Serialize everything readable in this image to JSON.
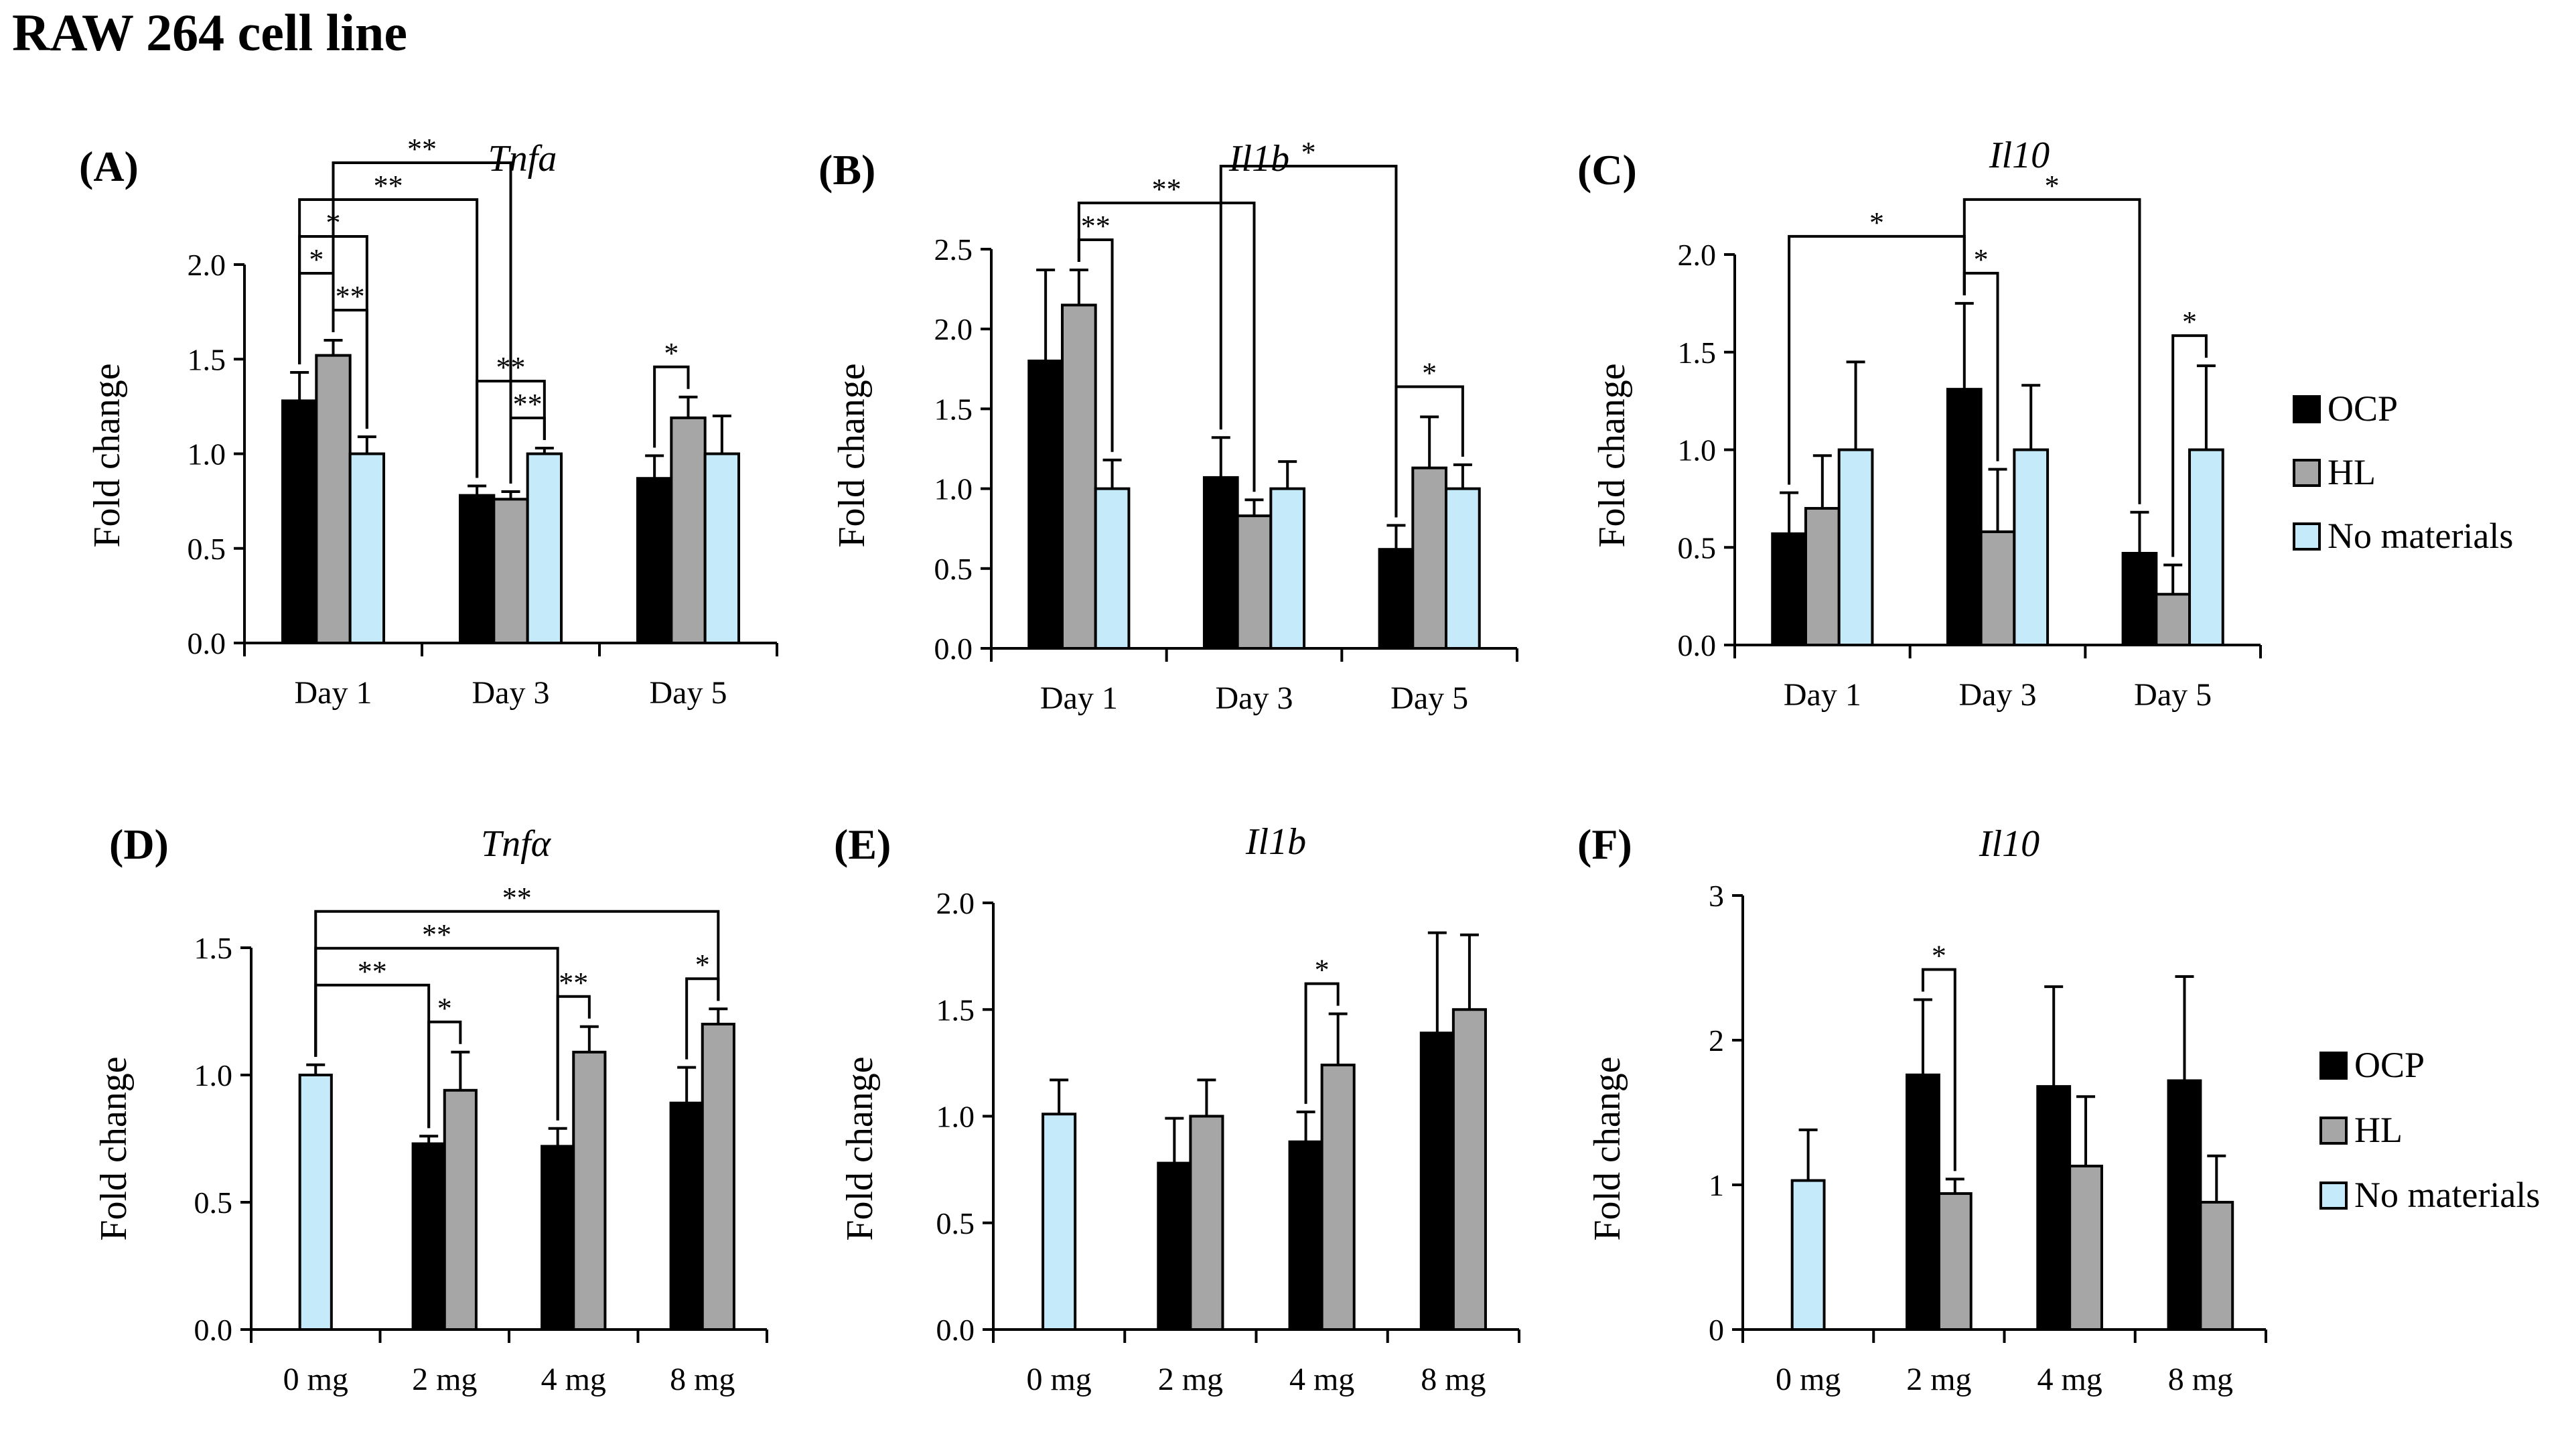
{
  "page_title": "RAW 264 cell line",
  "colors": {
    "OCP": "#000000",
    "HL": "#a6a6a6",
    "No materials": "#c5ebfb",
    "stroke": "#000000"
  },
  "legends": [
    {
      "entries": [
        "OCP",
        "HL",
        "No materials"
      ]
    },
    {
      "entries": [
        "OCP",
        "HL",
        "No materials"
      ]
    }
  ],
  "chart_data": [
    {
      "id": "A",
      "panel_label": "(A)",
      "type": "bar",
      "title": "Tnfa",
      "xlabel": "",
      "ylabel": "Fold change",
      "ylim": [
        0,
        2.0
      ],
      "yticks": [
        "0.0",
        "0.5",
        "1.0",
        "1.5",
        "2.0"
      ],
      "categories": [
        "Day 1",
        "Day 3",
        "Day 5"
      ],
      "series": [
        {
          "name": "OCP",
          "values": [
            1.28,
            0.78,
            0.87
          ],
          "errors": [
            0.15,
            0.05,
            0.12
          ]
        },
        {
          "name": "HL",
          "values": [
            1.52,
            0.76,
            1.19
          ],
          "errors": [
            0.08,
            0.04,
            0.11
          ]
        },
        {
          "name": "No materials",
          "values": [
            1.0,
            1.0,
            1.0
          ],
          "errors": [
            0.09,
            0.03,
            0.2
          ]
        }
      ],
      "annotations": [
        {
          "from": [
            0,
            0
          ],
          "to": [
            0,
            1
          ],
          "label": "*"
        },
        {
          "from": [
            0,
            1
          ],
          "to": [
            0,
            2
          ],
          "label": "**"
        },
        {
          "from": [
            0,
            0
          ],
          "to": [
            0,
            2
          ],
          "label": "*"
        },
        {
          "from": [
            0,
            0
          ],
          "to": [
            1,
            0
          ],
          "label": "**"
        },
        {
          "from": [
            0,
            1
          ],
          "to": [
            1,
            1
          ],
          "label": "**"
        },
        {
          "from": [
            1,
            0
          ],
          "to": [
            1,
            2
          ],
          "label": "**"
        },
        {
          "from": [
            1,
            1
          ],
          "to": [
            1,
            2
          ],
          "label": "**"
        },
        {
          "from": [
            2,
            0
          ],
          "to": [
            2,
            1
          ],
          "label": "*"
        }
      ]
    },
    {
      "id": "B",
      "panel_label": "(B)",
      "type": "bar",
      "title": "Il1b",
      "xlabel": "",
      "ylabel": "Fold change",
      "ylim": [
        0,
        2.5
      ],
      "yticks": [
        "0.0",
        "0.5",
        "1.0",
        "1.5",
        "2.0",
        "2.5"
      ],
      "categories": [
        "Day 1",
        "Day 3",
        "Day 5"
      ],
      "series": [
        {
          "name": "OCP",
          "values": [
            1.8,
            1.07,
            0.62
          ],
          "errors": [
            0.57,
            0.25,
            0.15
          ]
        },
        {
          "name": "HL",
          "values": [
            2.15,
            0.83,
            1.13
          ],
          "errors": [
            0.22,
            0.1,
            0.32
          ]
        },
        {
          "name": "No materials",
          "values": [
            1.0,
            1.0,
            1.0
          ],
          "errors": [
            0.18,
            0.17,
            0.15
          ]
        }
      ],
      "annotations": [
        {
          "from": [
            0,
            1
          ],
          "to": [
            0,
            2
          ],
          "label": "**"
        },
        {
          "from": [
            0,
            1
          ],
          "to": [
            1,
            1
          ],
          "label": "**"
        },
        {
          "from": [
            1,
            0
          ],
          "to": [
            2,
            0
          ],
          "label": "*"
        },
        {
          "from": [
            2,
            0
          ],
          "to": [
            2,
            2
          ],
          "label": "*"
        }
      ]
    },
    {
      "id": "C",
      "panel_label": "(C)",
      "type": "bar",
      "title": "Il10",
      "xlabel": "",
      "ylabel": "Fold change",
      "ylim": [
        0,
        2.0
      ],
      "yticks": [
        "0.0",
        "0.5",
        "1.0",
        "1.5",
        "2.0"
      ],
      "categories": [
        "Day 1",
        "Day 3",
        "Day 5"
      ],
      "series": [
        {
          "name": "OCP",
          "values": [
            0.57,
            1.31,
            0.47
          ],
          "errors": [
            0.21,
            0.44,
            0.21
          ]
        },
        {
          "name": "HL",
          "values": [
            0.7,
            0.58,
            0.26
          ],
          "errors": [
            0.27,
            0.32,
            0.15
          ]
        },
        {
          "name": "No materials",
          "values": [
            1.0,
            1.0,
            1.0
          ],
          "errors": [
            0.45,
            0.33,
            0.43
          ]
        }
      ],
      "annotations": [
        {
          "from": [
            0,
            0
          ],
          "to": [
            1,
            0
          ],
          "label": "*"
        },
        {
          "from": [
            1,
            0
          ],
          "to": [
            1,
            1
          ],
          "label": "*"
        },
        {
          "from": [
            1,
            0
          ],
          "to": [
            2,
            0
          ],
          "label": "*"
        },
        {
          "from": [
            2,
            1
          ],
          "to": [
            2,
            2
          ],
          "label": "*"
        }
      ]
    },
    {
      "id": "D",
      "panel_label": "(D)",
      "type": "bar",
      "title": "Tnfα",
      "xlabel": "",
      "ylabel": "Fold change",
      "ylim": [
        0,
        1.5
      ],
      "yticks": [
        "0.0",
        "0.5",
        "1.0",
        "1.5"
      ],
      "categories": [
        "0 mg",
        "2 mg",
        "4 mg",
        "8 mg"
      ],
      "series": [
        {
          "name": "OCP",
          "values": [
            null,
            0.73,
            0.72,
            0.89
          ],
          "errors": [
            null,
            0.03,
            0.07,
            0.14
          ]
        },
        {
          "name": "HL",
          "values": [
            null,
            0.94,
            1.09,
            1.2
          ],
          "errors": [
            null,
            0.15,
            0.1,
            0.06
          ]
        },
        {
          "name": "No materials",
          "values": [
            1.0,
            null,
            null,
            null
          ],
          "errors": [
            0.04,
            null,
            null,
            null
          ]
        }
      ],
      "annotations": [
        {
          "from": [
            0,
            2
          ],
          "to": [
            1,
            0
          ],
          "label": "**"
        },
        {
          "from": [
            1,
            0
          ],
          "to": [
            1,
            1
          ],
          "label": "*"
        },
        {
          "from": [
            0,
            2
          ],
          "to": [
            2,
            0
          ],
          "label": "**"
        },
        {
          "from": [
            2,
            0
          ],
          "to": [
            2,
            1
          ],
          "label": "**"
        },
        {
          "from": [
            0,
            2
          ],
          "to": [
            3,
            1
          ],
          "label": "**"
        },
        {
          "from": [
            3,
            0
          ],
          "to": [
            3,
            1
          ],
          "label": "*"
        }
      ]
    },
    {
      "id": "E",
      "panel_label": "(E)",
      "type": "bar",
      "title": "Il1b",
      "xlabel": "",
      "ylabel": "Fold change",
      "ylim": [
        0,
        2.0
      ],
      "yticks": [
        "0.0",
        "0.5",
        "1.0",
        "1.5",
        "2.0"
      ],
      "categories": [
        "0 mg",
        "2 mg",
        "4 mg",
        "8 mg"
      ],
      "series": [
        {
          "name": "OCP",
          "values": [
            null,
            0.78,
            0.88,
            1.39
          ],
          "errors": [
            null,
            0.21,
            0.14,
            0.47
          ]
        },
        {
          "name": "HL",
          "values": [
            null,
            1.0,
            1.24,
            1.5
          ],
          "errors": [
            null,
            0.17,
            0.24,
            0.35
          ]
        },
        {
          "name": "No materials",
          "values": [
            1.01,
            null,
            null,
            null
          ],
          "errors": [
            0.16,
            null,
            null,
            null
          ]
        }
      ],
      "annotations": [
        {
          "from": [
            2,
            0
          ],
          "to": [
            2,
            1
          ],
          "label": "*"
        }
      ]
    },
    {
      "id": "F",
      "panel_label": "(F)",
      "type": "bar",
      "title": "Il10",
      "xlabel": "",
      "ylabel": "Fold change",
      "ylim": [
        0,
        3
      ],
      "yticks": [
        "0",
        "1",
        "2",
        "3"
      ],
      "categories": [
        "0 mg",
        "2 mg",
        "4 mg",
        "8 mg"
      ],
      "series": [
        {
          "name": "OCP",
          "values": [
            null,
            1.76,
            1.68,
            1.72
          ],
          "errors": [
            null,
            0.52,
            0.69,
            0.72
          ]
        },
        {
          "name": "HL",
          "values": [
            null,
            0.94,
            1.13,
            0.88
          ],
          "errors": [
            null,
            0.1,
            0.48,
            0.32
          ]
        },
        {
          "name": "No materials",
          "values": [
            1.03,
            null,
            null,
            null
          ],
          "errors": [
            0.35,
            null,
            null,
            null
          ]
        }
      ],
      "annotations": [
        {
          "from": [
            1,
            0
          ],
          "to": [
            1,
            1
          ],
          "label": "*"
        }
      ]
    }
  ]
}
